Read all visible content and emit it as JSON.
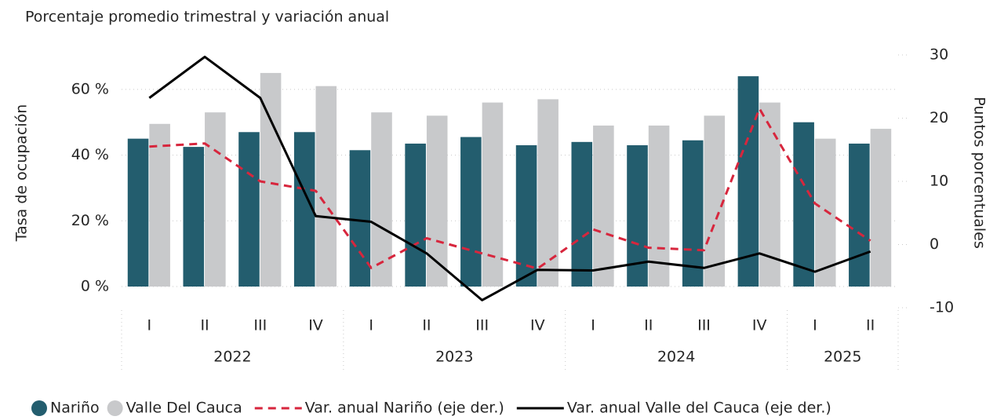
{
  "chart_data": {
    "type": "bar-line",
    "title": "Porcentaje promedio trimestral y variación anual",
    "y_label": "Tasa de ocupación",
    "y2_label": "Puntos porcentuales",
    "categories": [
      "I",
      "II",
      "III",
      "IV",
      "I",
      "II",
      "III",
      "IV",
      "I",
      "II",
      "III",
      "IV",
      "I",
      "II"
    ],
    "groups": [
      {
        "label": "2022",
        "count": 4
      },
      {
        "label": "2023",
        "count": 4
      },
      {
        "label": "2024",
        "count": 4
      },
      {
        "label": "2025",
        "count": 2
      }
    ],
    "series": [
      {
        "name": "Nariño",
        "kind": "bar",
        "color": "#235d6e",
        "values": [
          45,
          42.5,
          47,
          47,
          41.5,
          43.5,
          45.5,
          43,
          44,
          43,
          44.5,
          64,
          50,
          43.5
        ]
      },
      {
        "name": "Valle Del Cauca",
        "kind": "bar",
        "color": "#c8c9cb",
        "values": [
          49.5,
          53,
          65,
          61,
          53,
          52,
          56,
          57,
          49,
          49,
          52,
          56,
          45,
          48
        ]
      },
      {
        "name": "Var. anual Nariño (eje der.)",
        "kind": "line",
        "dash": true,
        "axis": "y2",
        "color": "#d7263d",
        "values": [
          15.5,
          16,
          10,
          8.5,
          -3.7,
          1,
          -1.4,
          -3.8,
          2.4,
          -0.5,
          -0.9,
          21.5,
          6.5,
          0.6
        ]
      },
      {
        "name": "Var. anual Valle del Cauca (eje der.)",
        "kind": "line",
        "dash": false,
        "axis": "y2",
        "color": "#000000",
        "values": [
          23.2,
          29.7,
          23.2,
          4.5,
          3.6,
          -1.4,
          -8.8,
          -4,
          -4.1,
          -2.7,
          -3.7,
          -1.4,
          -4.3,
          -1.1
        ]
      }
    ],
    "ylim": [
      0,
      70
    ],
    "yticks": [
      {
        "value": 0,
        "label": "0 %"
      },
      {
        "value": 20,
        "label": "20 %"
      },
      {
        "value": 40,
        "label": "40 %"
      },
      {
        "value": 60,
        "label": "60 %"
      }
    ],
    "y2lim": [
      -10,
      30
    ],
    "y2ticks": [
      -10,
      0,
      10,
      20,
      30
    ],
    "grid": true
  }
}
